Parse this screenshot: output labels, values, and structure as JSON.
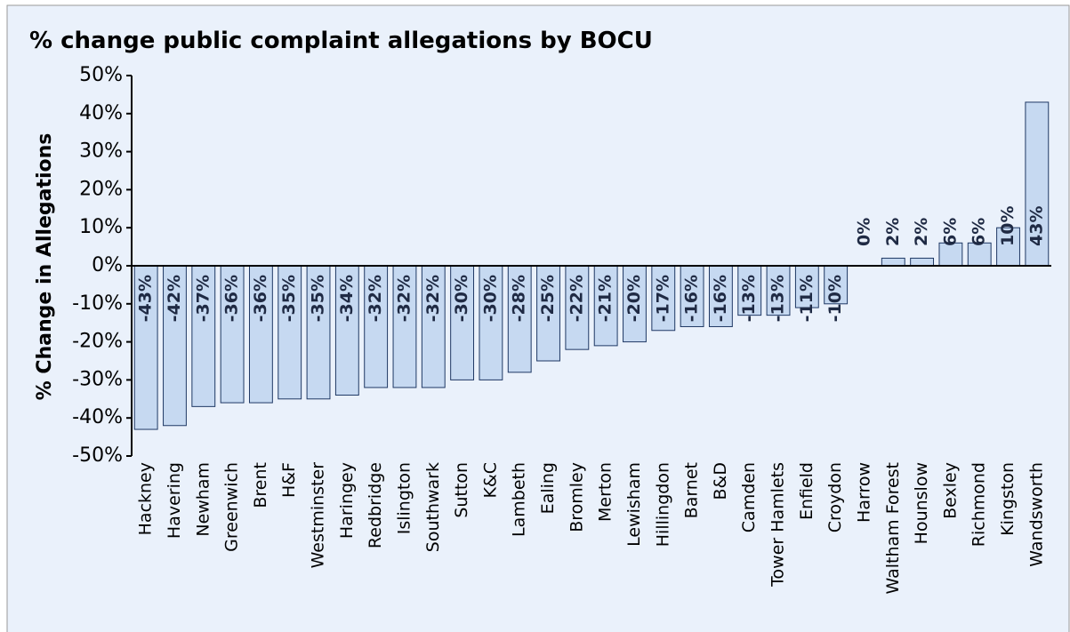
{
  "chart_data": {
    "type": "bar",
    "title": "% change public complaint allegations by BOCU",
    "y_label": "% Change in Allegations",
    "categories": [
      "Hackney",
      "Havering",
      "Newham",
      "Greenwich",
      "Brent",
      "H&F",
      "Westminster",
      "Haringey",
      "Redbridge",
      "Islington",
      "Southwark",
      "Sutton",
      "K&C",
      "Lambeth",
      "Ealing",
      "Bromley",
      "Merton",
      "Lewisham",
      "Hillingdon",
      "Barnet",
      "B&D",
      "Camden",
      "Tower Hamlets",
      "Enfield",
      "Croydon",
      "Harrow",
      "Waltham Forest",
      "Hounslow",
      "Bexley",
      "Richmond",
      "Kingston",
      "Wandsworth"
    ],
    "values": [
      -43,
      -42,
      -37,
      -36,
      -36,
      -35,
      -35,
      -34,
      -32,
      -32,
      -32,
      -30,
      -30,
      -28,
      -25,
      -22,
      -21,
      -20,
      -17,
      -16,
      -16,
      -13,
      -13,
      -11,
      -10,
      0,
      2,
      2,
      6,
      6,
      10,
      43
    ],
    "value_labels": [
      "-43%",
      "-42%",
      "-37%",
      "-36%",
      "-36%",
      "-35%",
      "-35%",
      "-34%",
      "-32%",
      "-32%",
      "-32%",
      "-30%",
      "-30%",
      "-28%",
      "-25%",
      "-22%",
      "-21%",
      "-20%",
      "-17%",
      "-16%",
      "-16%",
      "-13%",
      "-13%",
      "-11%",
      "-10%",
      "0%",
      "2%",
      "2%",
      "6%",
      "6%",
      "10%",
      "43%"
    ],
    "color": "#c6d9f1",
    "ylim": [
      -50,
      50
    ],
    "yticks": [
      {
        "value": -50,
        "label": "-50%"
      },
      {
        "value": -40,
        "label": "-40%"
      },
      {
        "value": -30,
        "label": "-30%"
      },
      {
        "value": -20,
        "label": "-20%"
      },
      {
        "value": -10,
        "label": "-10%"
      },
      {
        "value": 0,
        "label": "0%"
      },
      {
        "value": 10,
        "label": "10%"
      },
      {
        "value": 20,
        "label": "20%"
      },
      {
        "value": 30,
        "label": "30%"
      },
      {
        "value": 40,
        "label": "40%"
      },
      {
        "value": 50,
        "label": "50%"
      }
    ],
    "grid": false
  }
}
